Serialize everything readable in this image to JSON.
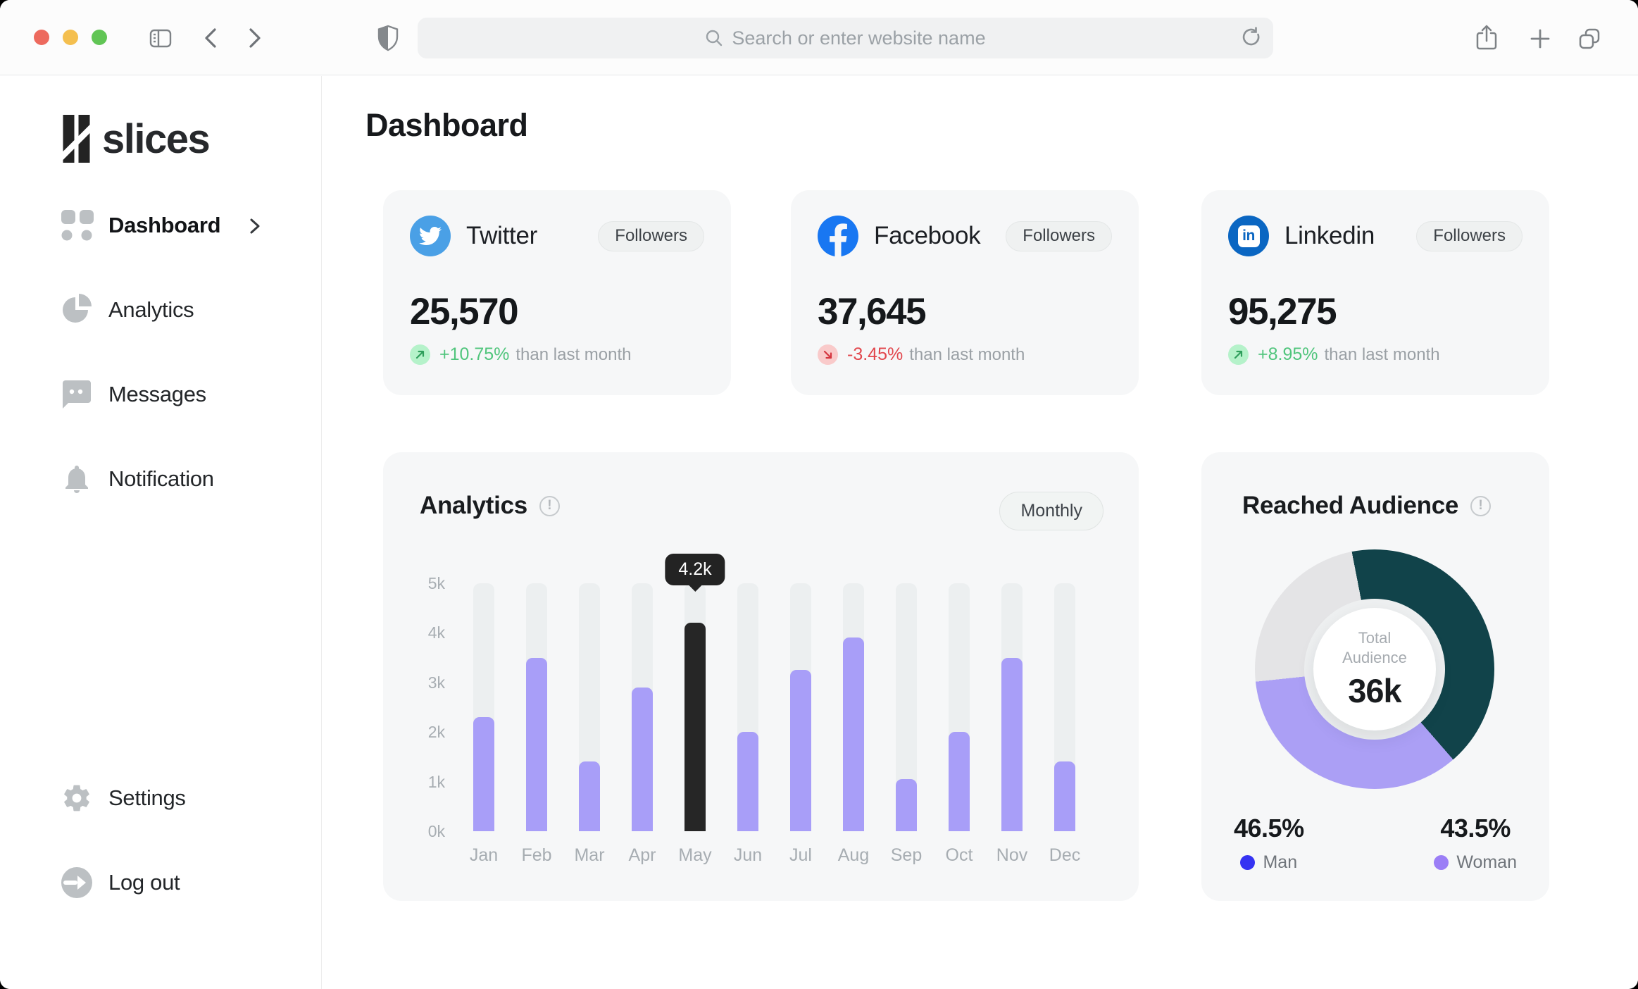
{
  "browser": {
    "address_placeholder": "Search or enter website name"
  },
  "sidebar": {
    "logo_text": "slices",
    "nav": [
      {
        "label": "Dashboard"
      },
      {
        "label": "Analytics"
      },
      {
        "label": "Messages"
      },
      {
        "label": "Notification"
      }
    ],
    "footer_nav": [
      {
        "label": "Settings"
      },
      {
        "label": "Log out"
      }
    ]
  },
  "page": {
    "title": "Dashboard"
  },
  "stat_cards": [
    {
      "network": "Twitter",
      "badge": "Followers",
      "count": "25,570",
      "change": "+10.75%",
      "change_suffix": "than last month",
      "trend": "up",
      "brand_color": "#4AA0E6"
    },
    {
      "network": "Facebook",
      "badge": "Followers",
      "count": "37,645",
      "change": "-3.45%",
      "change_suffix": "than last month",
      "trend": "down",
      "brand_color": "#1877F2"
    },
    {
      "network": "Linkedin",
      "badge": "Followers",
      "count": "95,275",
      "change": "+8.95%",
      "change_suffix": "than last month",
      "trend": "up",
      "brand_color": "#0A66C2"
    }
  ],
  "analytics": {
    "title": "Analytics",
    "period_button": "Monthly",
    "tooltip": "4.2k",
    "chart_data": {
      "type": "bar",
      "title": "Analytics",
      "categories": [
        "Jan",
        "Feb",
        "Mar",
        "Apr",
        "May",
        "Jun",
        "Jul",
        "Aug",
        "Sep",
        "Oct",
        "Nov",
        "Dec"
      ],
      "values_k": [
        2.3,
        3.5,
        1.4,
        2.9,
        4.2,
        2.0,
        3.25,
        3.9,
        1.05,
        2.0,
        3.5,
        1.4
      ],
      "y_ticks": [
        "5k",
        "4k",
        "3k",
        "2k",
        "1k",
        "0k"
      ],
      "y_max_k": 5,
      "highlight_month": "May",
      "highlight_value_label": "4.2k",
      "bar_color": "#A89EF8",
      "highlight_color": "#262626",
      "track_color": "#ECEFF0",
      "grid": false
    }
  },
  "audience": {
    "title": "Reached Audience",
    "center_label_line1": "Total",
    "center_label_line2": "Audience",
    "center_value": "36k",
    "chart_data": {
      "type": "donut",
      "start_deg": 349,
      "segments": [
        {
          "name": "segment-teal",
          "color": "#11434A",
          "deg": 150
        },
        {
          "name": "segment-purple",
          "color": "#AB9FF5",
          "deg": 125
        },
        {
          "name": "segment-gray",
          "color": "#E4E4E6",
          "deg": 85
        }
      ]
    },
    "legend": [
      {
        "value": "46.5%",
        "label": "Man",
        "color": "#3533F2"
      },
      {
        "value": "43.5%",
        "label": "Woman",
        "color": "#9B7EF6"
      }
    ]
  }
}
